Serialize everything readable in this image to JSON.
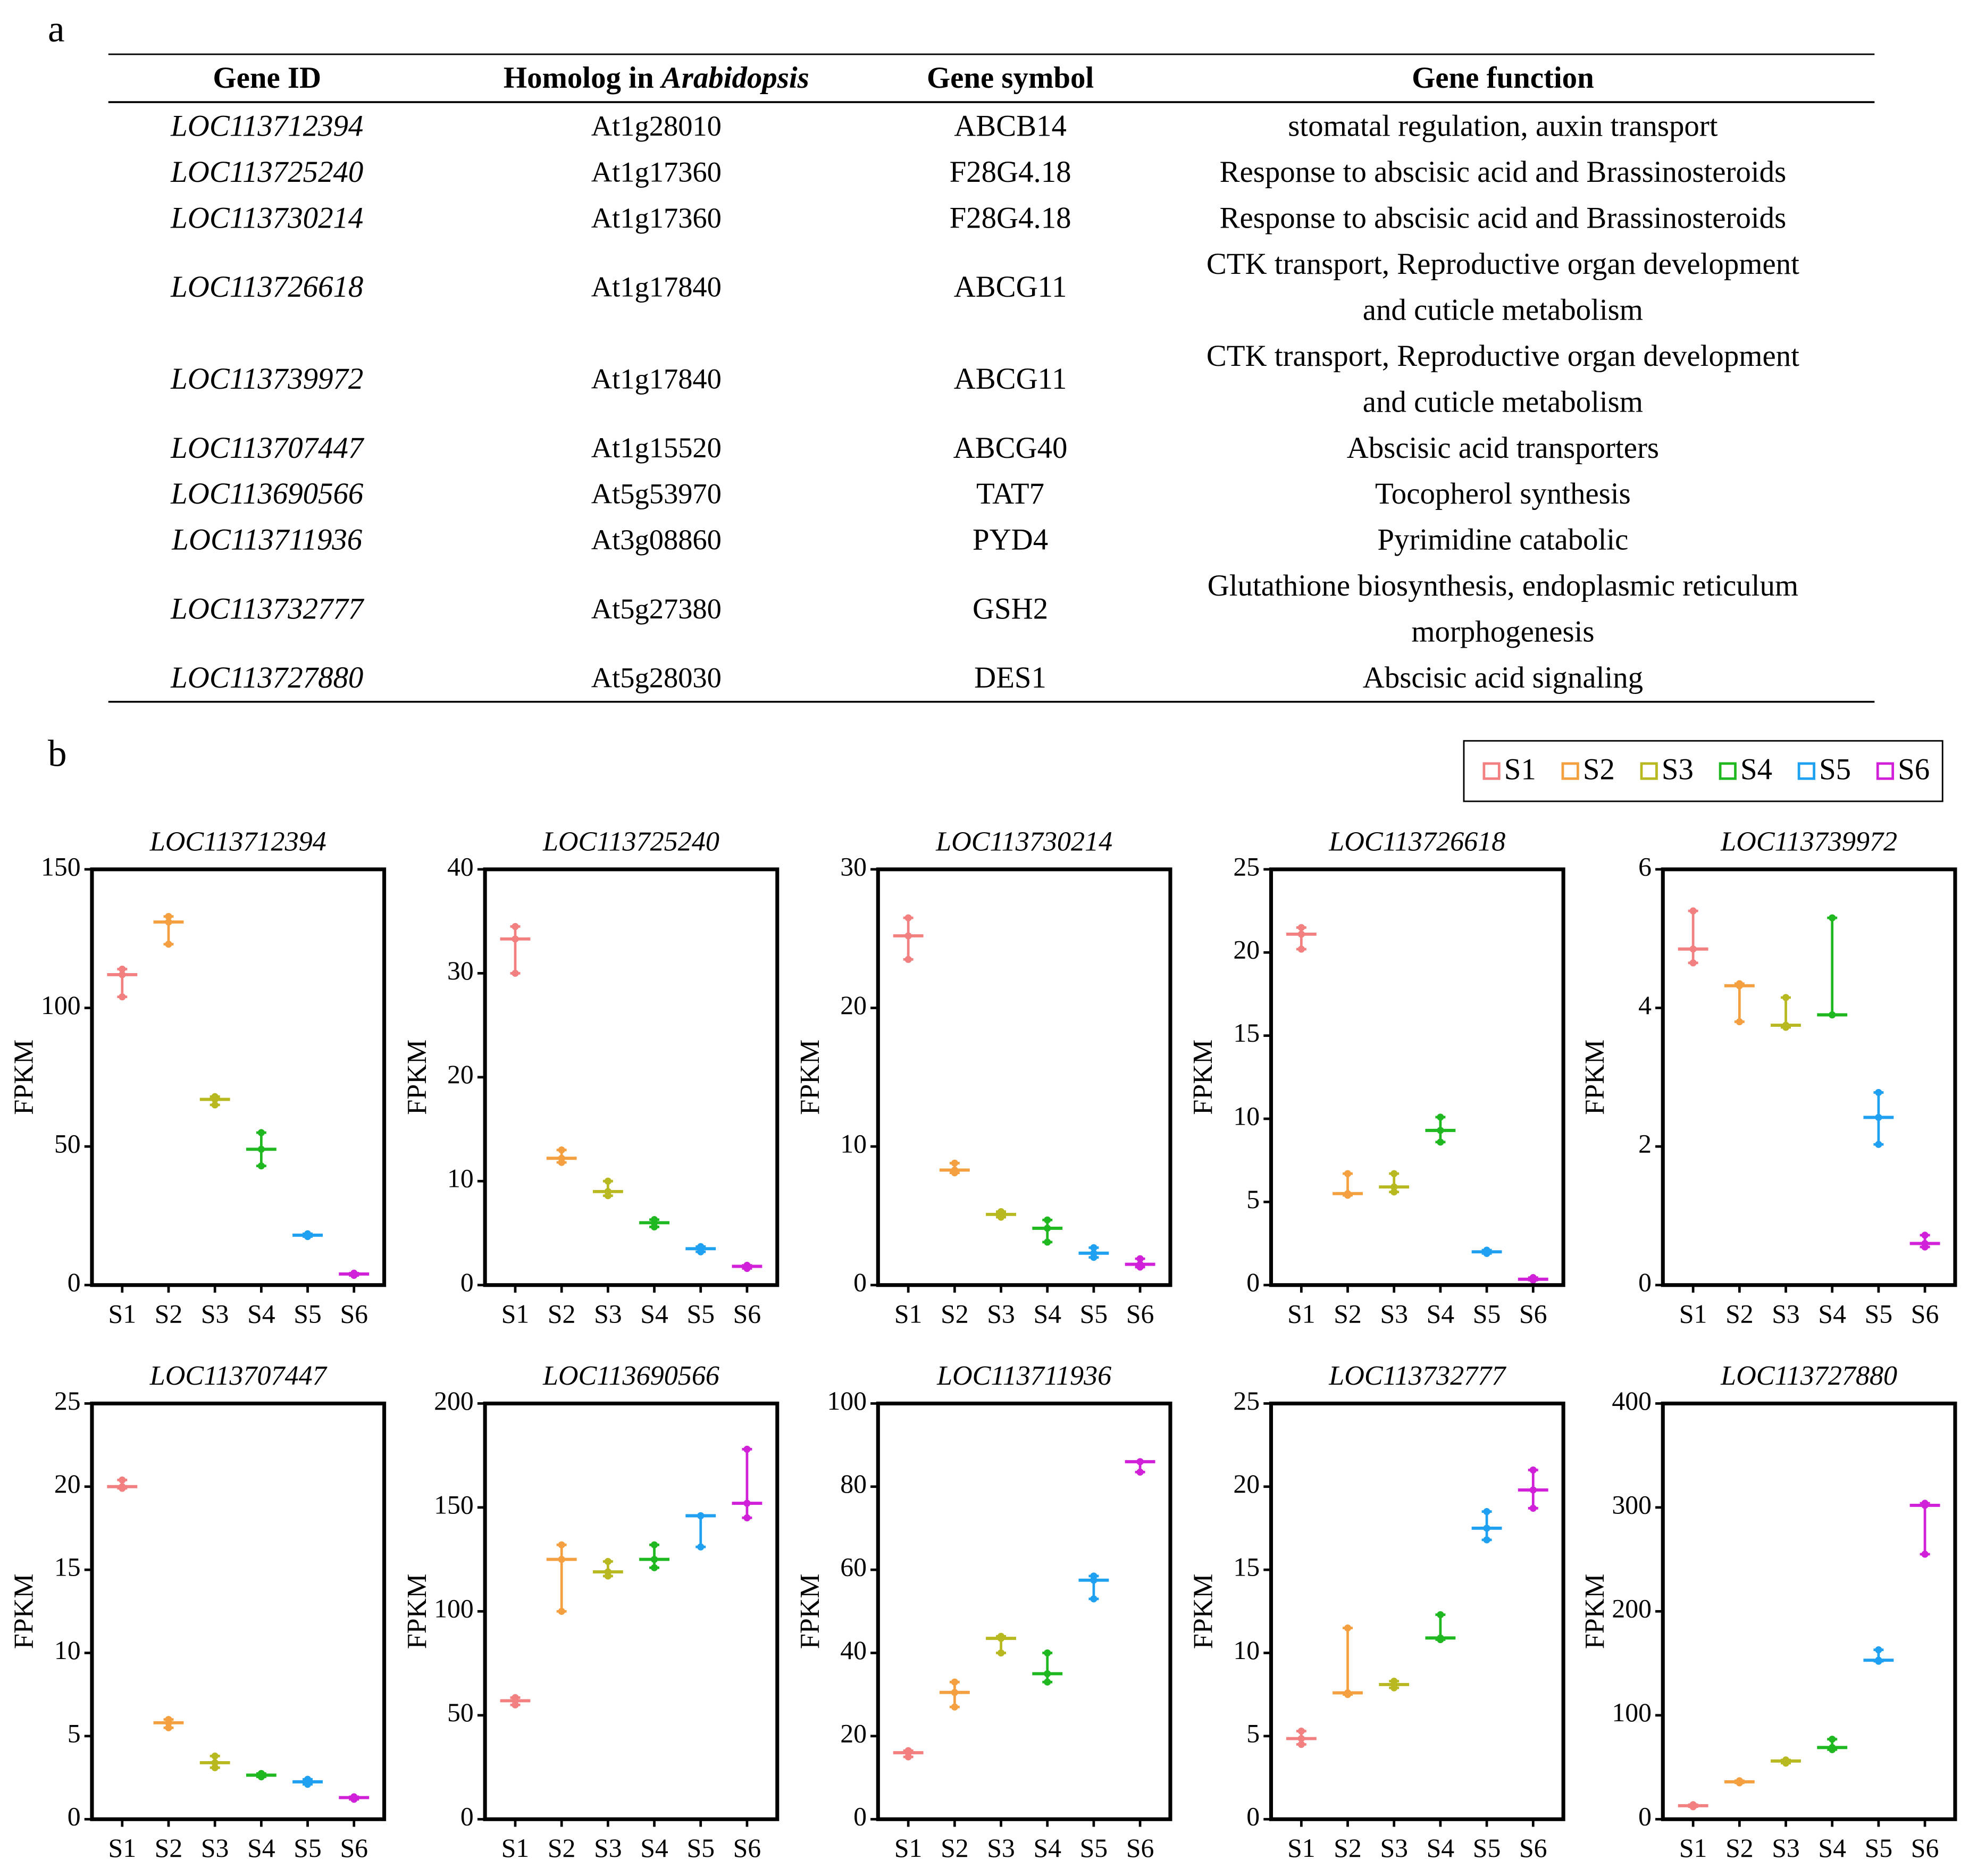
{
  "panel_a_label": "a",
  "panel_b_label": "b",
  "table": {
    "headers": {
      "gene_id": "Gene ID",
      "homolog": [
        "Homolog in",
        "Arabidopsis"
      ],
      "symbol": "Gene symbol",
      "function": "Gene function"
    },
    "rows": [
      {
        "gene_id": "LOC113712394",
        "homolog": "At1g28010",
        "symbol": "ABCB14",
        "function": [
          "stomatal regulation, auxin transport"
        ]
      },
      {
        "gene_id": "LOC113725240",
        "homolog": "At1g17360",
        "symbol": "F28G4.18",
        "function": [
          "Response to abscisic acid and Brassinosteroids"
        ]
      },
      {
        "gene_id": "LOC113730214",
        "homolog": "At1g17360",
        "symbol": "F28G4.18",
        "function": [
          "Response to abscisic acid and Brassinosteroids"
        ]
      },
      {
        "gene_id": "LOC113726618",
        "homolog": "At1g17840",
        "symbol": "ABCG11",
        "function": [
          "CTK transport, Reproductive organ development",
          "and cuticle metabolism"
        ]
      },
      {
        "gene_id": "LOC113739972",
        "homolog": "At1g17840",
        "symbol": "ABCG11",
        "function": [
          "CTK transport, Reproductive organ development",
          "and cuticle metabolism"
        ]
      },
      {
        "gene_id": "LOC113707447",
        "homolog": "At1g15520",
        "symbol": "ABCG40",
        "function": [
          "Abscisic acid transporters"
        ]
      },
      {
        "gene_id": "LOC113690566",
        "homolog": "At5g53970",
        "symbol": "TAT7",
        "function": [
          "Tocopherol synthesis"
        ]
      },
      {
        "gene_id": "LOC113711936",
        "homolog": "At3g08860",
        "symbol": "PYD4",
        "function": [
          "Pyrimidine catabolic"
        ]
      },
      {
        "gene_id": "LOC113732777",
        "homolog": "At5g27380",
        "symbol": "GSH2",
        "function": [
          "Glutathione biosynthesis, endoplasmic reticulum",
          "morphogenesis"
        ]
      },
      {
        "gene_id": "LOC113727880",
        "homolog": "At5g28030",
        "symbol": "DES1",
        "function": [
          "Abscisic acid signaling"
        ]
      }
    ]
  },
  "legend": {
    "labels": [
      "S1",
      "S2",
      "S3",
      "S4",
      "S5",
      "S6"
    ],
    "colors": [
      "#f28080",
      "#f5a040",
      "#b8b820",
      "#20b820",
      "#20a0f0",
      "#d020d8"
    ]
  },
  "chart_data": [
    {
      "type": "box",
      "title": "LOC113712394",
      "ylabel": "FPKM",
      "categories": [
        "S1",
        "S2",
        "S3",
        "S4",
        "S5",
        "S6"
      ],
      "min": [
        104,
        123,
        65,
        43,
        17.5,
        3.5
      ],
      "median": [
        112,
        131,
        67,
        49,
        18,
        4
      ],
      "max": [
        114,
        133,
        68,
        55,
        18.5,
        4.3
      ],
      "ylim": [
        0,
        150
      ],
      "yticks": [
        0,
        50,
        100,
        150
      ]
    },
    {
      "type": "box",
      "title": "LOC113725240",
      "ylabel": "FPKM",
      "categories": [
        "S1",
        "S2",
        "S3",
        "S4",
        "S5",
        "S6"
      ],
      "min": [
        30,
        11.8,
        8.6,
        5.6,
        3.2,
        1.6
      ],
      "median": [
        33.3,
        12.2,
        9,
        6,
        3.5,
        1.8
      ],
      "max": [
        34.5,
        13,
        10,
        6.3,
        3.7,
        1.9
      ],
      "ylim": [
        0,
        40
      ],
      "yticks": [
        0,
        10,
        20,
        30,
        40
      ]
    },
    {
      "type": "box",
      "title": "LOC113730214",
      "ylabel": "FPKM",
      "categories": [
        "S1",
        "S2",
        "S3",
        "S4",
        "S5",
        "S6"
      ],
      "min": [
        23.5,
        8.1,
        4.9,
        3.1,
        2.0,
        1.3
      ],
      "median": [
        25.2,
        8.3,
        5.1,
        4.1,
        2.3,
        1.5
      ],
      "max": [
        26.5,
        8.8,
        5.3,
        4.7,
        2.7,
        1.9
      ],
      "ylim": [
        0,
        30
      ],
      "yticks": [
        0,
        10,
        20,
        30
      ]
    },
    {
      "type": "box",
      "title": "LOC113726618",
      "ylabel": "FPKM",
      "categories": [
        "S1",
        "S2",
        "S3",
        "S4",
        "S5",
        "S6"
      ],
      "min": [
        20.2,
        5.4,
        5.6,
        8.6,
        1.9,
        0.3
      ],
      "median": [
        21.1,
        5.5,
        5.9,
        9.3,
        2.0,
        0.35
      ],
      "max": [
        21.5,
        6.7,
        6.7,
        10.1,
        2.1,
        0.45
      ],
      "ylim": [
        0,
        25
      ],
      "yticks": [
        0,
        5,
        10,
        15,
        20,
        25
      ]
    },
    {
      "type": "box",
      "title": "LOC113739972",
      "ylabel": "FPKM",
      "categories": [
        "S1",
        "S2",
        "S3",
        "S4",
        "S5",
        "S6"
      ],
      "min": [
        4.65,
        3.8,
        3.72,
        3.9,
        2.03,
        0.55
      ],
      "median": [
        4.85,
        4.32,
        3.75,
        3.9,
        2.42,
        0.6
      ],
      "max": [
        5.4,
        4.35,
        4.15,
        5.3,
        2.78,
        0.72
      ],
      "ylim": [
        0,
        6
      ],
      "yticks": [
        0,
        2,
        4,
        6
      ]
    },
    {
      "type": "box",
      "title": "LOC113707447",
      "ylabel": "FPKM",
      "categories": [
        "S1",
        "S2",
        "S3",
        "S4",
        "S5",
        "S6"
      ],
      "min": [
        19.9,
        5.5,
        3.1,
        2.55,
        2.1,
        1.2
      ],
      "median": [
        20.0,
        5.8,
        3.4,
        2.65,
        2.25,
        1.3
      ],
      "max": [
        20.4,
        6.0,
        3.8,
        2.75,
        2.4,
        1.35
      ],
      "ylim": [
        0,
        25
      ],
      "yticks": [
        0,
        5,
        10,
        15,
        20,
        25
      ]
    },
    {
      "type": "box",
      "title": "LOC113690566",
      "ylabel": "FPKM",
      "categories": [
        "S1",
        "S2",
        "S3",
        "S4",
        "S5",
        "S6"
      ],
      "min": [
        55,
        100,
        117,
        121,
        131,
        145
      ],
      "median": [
        57,
        125,
        119,
        125,
        146,
        152
      ],
      "max": [
        58.5,
        132,
        124,
        132,
        146,
        178
      ],
      "ylim": [
        0,
        200
      ],
      "yticks": [
        0,
        50,
        100,
        150,
        200
      ]
    },
    {
      "type": "box",
      "title": "LOC113711936",
      "ylabel": "FPKM",
      "categories": [
        "S1",
        "S2",
        "S3",
        "S4",
        "S5",
        "S6"
      ],
      "min": [
        15,
        27,
        40,
        33,
        53,
        83.5
      ],
      "median": [
        16,
        30.5,
        43.5,
        35,
        57.5,
        86
      ],
      "max": [
        16.5,
        33,
        44,
        40,
        58.5,
        86
      ],
      "ylim": [
        0,
        100
      ],
      "yticks": [
        0,
        20,
        40,
        60,
        80,
        100
      ]
    },
    {
      "type": "box",
      "title": "LOC113732777",
      "ylabel": "FPKM",
      "categories": [
        "S1",
        "S2",
        "S3",
        "S4",
        "S5",
        "S6"
      ],
      "min": [
        4.5,
        7.5,
        7.9,
        10.8,
        16.8,
        18.7
      ],
      "median": [
        4.85,
        7.6,
        8.1,
        10.9,
        17.5,
        19.8
      ],
      "max": [
        5.3,
        11.5,
        8.3,
        12.3,
        18.5,
        21.0
      ],
      "ylim": [
        0,
        25
      ],
      "yticks": [
        0,
        5,
        10,
        15,
        20,
        25
      ]
    },
    {
      "type": "box",
      "title": "LOC113727880",
      "ylabel": "FPKM",
      "categories": [
        "S1",
        "S2",
        "S3",
        "S4",
        "S5",
        "S6"
      ],
      "min": [
        12,
        35,
        54,
        67,
        152,
        255
      ],
      "median": [
        13,
        36,
        56,
        69,
        153,
        302
      ],
      "max": [
        14,
        37,
        57,
        77,
        163,
        304
      ],
      "ylim": [
        0,
        400
      ],
      "yticks": [
        0,
        100,
        200,
        300,
        400
      ]
    }
  ]
}
